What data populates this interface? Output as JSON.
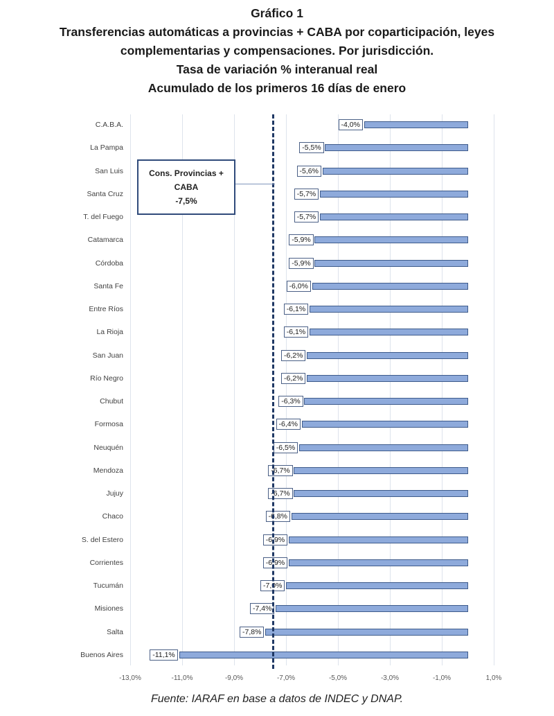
{
  "header": {
    "title_line1": "Gráfico 1",
    "title_line2": "Transferencias automáticas a provincias + CABA por coparticipación, leyes",
    "title_line3": "complementarias y compensaciones. Por jurisdicción.",
    "title_line4": "Tasa de variación % interanual real",
    "title_line5": "Acumulado de los primeros 16 días de enero"
  },
  "annotation": {
    "line1": "Cons. Provincias +",
    "line2": "CABA",
    "line3": "-7,5%",
    "value": -7.5
  },
  "footer": {
    "source": "Fuente: IARAF en base a datos de INDEC y DNAP."
  },
  "colors": {
    "bar_fill": "#8eaadb",
    "bar_border": "#3d5a8a",
    "avg_line": "#1f3864"
  },
  "chart_data": {
    "type": "bar",
    "orientation": "horizontal",
    "title": "Gráfico 1 — Transferencias automáticas a provincias + CABA por coparticipación, leyes complementarias y compensaciones. Por jurisdicción. Tasa de variación % interanual real. Acumulado de los primeros 16 días de enero",
    "xlabel": "",
    "ylabel": "",
    "xlim": [
      -13.0,
      1.0
    ],
    "xticks": [
      "-13,0%",
      "-11,0%",
      "-9,0%",
      "-7,0%",
      "-5,0%",
      "-3,0%",
      "-1,0%",
      "1,0%"
    ],
    "xtick_values": [
      -13,
      -11,
      -9,
      -7,
      -5,
      -3,
      -1,
      1
    ],
    "grid": true,
    "categories": [
      "C.A.B.A.",
      "La Pampa",
      "San Luis",
      "Santa Cruz",
      "T. del Fuego",
      "Catamarca",
      "Córdoba",
      "Santa Fe",
      "Entre Ríos",
      "La Rioja",
      "San Juan",
      "Río Negro",
      "Chubut",
      "Formosa",
      "Neuquén",
      "Mendoza",
      "Jujuy",
      "Chaco",
      "S. del Estero",
      "Corrientes",
      "Tucumán",
      "Misiones",
      "Salta",
      "Buenos Aires"
    ],
    "values": [
      -4.0,
      -5.5,
      -5.6,
      -5.7,
      -5.7,
      -5.9,
      -5.9,
      -6.0,
      -6.1,
      -6.1,
      -6.2,
      -6.2,
      -6.3,
      -6.4,
      -6.5,
      -6.7,
      -6.7,
      -6.8,
      -6.9,
      -6.9,
      -7.0,
      -7.4,
      -7.8,
      -11.1
    ],
    "value_labels": [
      "-4,0%",
      "-5,5%",
      "-5,6%",
      "-5,7%",
      "-5,7%",
      "-5,9%",
      "-5,9%",
      "-6,0%",
      "-6,1%",
      "-6,1%",
      "-6,2%",
      "-6,2%",
      "-6,3%",
      "-6,4%",
      "-6,5%",
      "-6,7%",
      "-6,7%",
      "-6,8%",
      "-6,9%",
      "-6,9%",
      "-7,0%",
      "-7,4%",
      "-7,8%",
      "-11,1%"
    ],
    "reference_line": {
      "label": "Cons. Provincias + CABA -7,5%",
      "value": -7.5,
      "style": "dashed"
    },
    "legend": null,
    "source": "Fuente: IARAF en base a datos de INDEC y DNAP."
  }
}
